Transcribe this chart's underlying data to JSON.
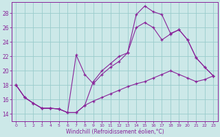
{
  "xlabel": "Windchill (Refroidissement éolien,°C)",
  "xlim": [
    -0.5,
    23.5
  ],
  "ylim": [
    13.0,
    29.5
  ],
  "yticks": [
    14,
    16,
    18,
    20,
    22,
    24,
    26,
    28
  ],
  "xticks": [
    0,
    1,
    2,
    3,
    4,
    5,
    6,
    7,
    8,
    9,
    10,
    11,
    12,
    13,
    14,
    15,
    16,
    17,
    18,
    19,
    20,
    21,
    22,
    23
  ],
  "bg_color": "#cce8e8",
  "grid_color": "#99cccc",
  "line_color": "#882299",
  "curve1_x": [
    0,
    1,
    2,
    3,
    4,
    5,
    6,
    7,
    8,
    9,
    10,
    11,
    12,
    13,
    14,
    15,
    16,
    17,
    18,
    19,
    20,
    21,
    22,
    23
  ],
  "curve1_y": [
    18.0,
    16.3,
    15.5,
    14.8,
    14.8,
    14.7,
    14.2,
    14.2,
    15.2,
    18.5,
    20.0,
    21.0,
    22.0,
    22.5,
    27.8,
    29.0,
    28.2,
    27.8,
    25.2,
    25.7,
    24.3,
    21.8,
    20.5,
    19.3
  ],
  "curve2_x": [
    0,
    1,
    2,
    3,
    4,
    5,
    6,
    7,
    8,
    9,
    10,
    11,
    12,
    13,
    14,
    15,
    16,
    17,
    18,
    19,
    20,
    21,
    22,
    23
  ],
  "curve2_y": [
    18.0,
    16.3,
    15.5,
    14.8,
    14.8,
    14.7,
    14.2,
    22.2,
    19.5,
    18.2,
    19.5,
    20.5,
    21.3,
    22.5,
    26.0,
    26.7,
    26.0,
    24.3,
    25.1,
    25.7,
    24.3,
    21.8,
    20.5,
    19.3
  ],
  "curve3_x": [
    0,
    1,
    2,
    3,
    4,
    5,
    6,
    7,
    8,
    9,
    10,
    11,
    12,
    13,
    14,
    15,
    16,
    17,
    18,
    19,
    20,
    21,
    22,
    23
  ],
  "curve3_y": [
    18.0,
    16.3,
    15.5,
    14.8,
    14.8,
    14.7,
    14.2,
    14.2,
    15.2,
    15.8,
    16.3,
    16.8,
    17.3,
    17.8,
    18.2,
    18.5,
    19.0,
    19.5,
    20.0,
    19.5,
    19.0,
    18.5,
    18.8,
    19.3
  ]
}
